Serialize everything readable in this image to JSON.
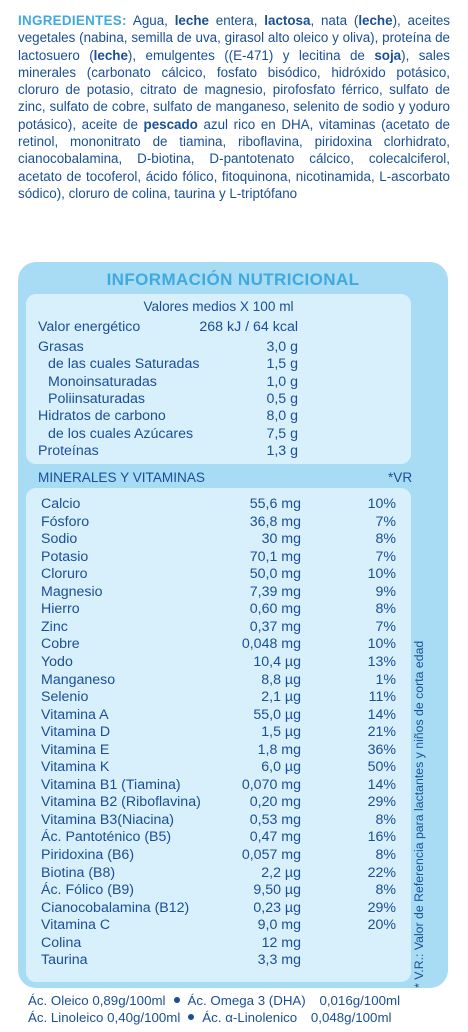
{
  "ingredients": {
    "heading": "INGREDIENTES:",
    "segments": [
      {
        "t": " Agua, ",
        "b": false
      },
      {
        "t": "leche",
        "b": true
      },
      {
        "t": " entera, ",
        "b": false
      },
      {
        "t": "lactosa",
        "b": true
      },
      {
        "t": ", nata (",
        "b": false
      },
      {
        "t": "leche",
        "b": true
      },
      {
        "t": "), aceites vegetales (nabina, semilla de uva, girasol alto oleico y oliva), proteína de lactosuero (",
        "b": false
      },
      {
        "t": "leche",
        "b": true
      },
      {
        "t": "), emulgentes ((E-471) y lecitina de ",
        "b": false
      },
      {
        "t": "soja",
        "b": true
      },
      {
        "t": "), sales minerales (carbonato cálcico, fosfato bisódico, hidróxido potásico, cloruro de potasio, citrato de magnesio, pirofosfato férrico, sulfato de zinc, sulfato de cobre, sulfato de manganeso, selenito de sodio y yoduro potásico), aceite de ",
        "b": false
      },
      {
        "t": "pescado",
        "b": true
      },
      {
        "t": " azul rico en DHA, vitaminas (acetato de retinol, mononitrato de tiamina, riboflavina, piridoxina clorhidrato, cianocobalamina, D-biotina, D-pantotenato cálcico, colecalciferol, acetato de tocoferol, ácido fólico, fitoquinona, nicotinamida, L-ascorbato sódico), cloruro de colina, taurina y L-triptófano",
        "b": false
      }
    ]
  },
  "nutrition": {
    "title": "INFORMACIÓN NUTRICIONAL",
    "average_header": "Valores medios X 100 ml",
    "energy": {
      "label": "Valor energético",
      "value": "268 kJ / 64 kcal"
    },
    "rows": [
      {
        "label": "Grasas",
        "value": "3,0 g",
        "indent": false
      },
      {
        "label": "de las cuales Saturadas",
        "value": "1,5 g",
        "indent": true
      },
      {
        "label": "Monoinsaturadas",
        "value": "1,0 g",
        "indent": true
      },
      {
        "label": "Poliinsaturadas",
        "value": "0,5 g",
        "indent": true
      },
      {
        "label": "Hidratos de carbono",
        "value": "8,0 g",
        "indent": false
      },
      {
        "label": "de los cuales Azúcares",
        "value": "7,5 g",
        "indent": true
      },
      {
        "label": "Proteínas",
        "value": "1,3 g",
        "indent": false
      }
    ]
  },
  "minerals": {
    "header": "MINERALES Y VITAMINAS",
    "vr_header": "*VR",
    "rows": [
      {
        "label": "Calcio",
        "value": "55,6 mg",
        "vr": "10%"
      },
      {
        "label": "Fósforo",
        "value": "36,8 mg",
        "vr": "7%"
      },
      {
        "label": "Sodio",
        "value": "30 mg",
        "vr": "8%"
      },
      {
        "label": "Potasio",
        "value": "70,1 mg",
        "vr": "7%"
      },
      {
        "label": "Cloruro",
        "value": "50,0 mg",
        "vr": "10%"
      },
      {
        "label": "Magnesio",
        "value": "7,39 mg",
        "vr": "9%"
      },
      {
        "label": "Hierro",
        "value": "0,60 mg",
        "vr": "8%"
      },
      {
        "label": "Zinc",
        "value": "0,37 mg",
        "vr": "7%"
      },
      {
        "label": "Cobre",
        "value": "0,048 mg",
        "vr": "10%"
      },
      {
        "label": "Yodo",
        "value": "10,4 µg",
        "vr": "13%"
      },
      {
        "label": "Manganeso",
        "value": "8,8 µg",
        "vr": "1%"
      },
      {
        "label": "Selenio",
        "value": "2,1 µg",
        "vr": "11%"
      },
      {
        "label": "Vitamina A",
        "value": "55,0 µg",
        "vr": "14%"
      },
      {
        "label": "Vitamina D",
        "value": "1,5 µg",
        "vr": "21%"
      },
      {
        "label": "Vitamina E",
        "value": "1,8 mg",
        "vr": "36%"
      },
      {
        "label": "Vitamina K",
        "value": "6,0 µg",
        "vr": "50%"
      },
      {
        "label": "Vitamina B1 (Tiamina)",
        "value": "0,070 mg",
        "vr": "14%"
      },
      {
        "label": "Vitamina B2 (Riboflavina)",
        "value": "0,20 mg",
        "vr": "29%"
      },
      {
        "label": "Vitamina B3(Niacina)",
        "value": "0,53 mg",
        "vr": "8%"
      },
      {
        "label": "Ác. Pantoténico (B5)",
        "value": "0,47 mg",
        "vr": "16%"
      },
      {
        "label": "Piridoxina (B6)",
        "value": "0,057 mg",
        "vr": "8%"
      },
      {
        "label": "Biotina (B8)",
        "value": "2,2 µg",
        "vr": "22%"
      },
      {
        "label": "Ác. Fólico (B9)",
        "value": "9,50 µg",
        "vr": "8%"
      },
      {
        "label": "Cianocobalamina (B12)",
        "value": "0,23 µg",
        "vr": "29%"
      },
      {
        "label": "Vitamina C",
        "value": "9,0 mg",
        "vr": "20%"
      },
      {
        "label": "Colina",
        "value": "12 mg",
        "vr": ""
      },
      {
        "label": "Taurina",
        "value": "3,3 mg",
        "vr": ""
      }
    ]
  },
  "vr_note": "* V.R.: Valor de Referencia para lactantes y niños de corta edad",
  "fatty_acids": [
    {
      "label": "Ác. Oleico",
      "value": "0,89g/100ml"
    },
    {
      "label": "Ác. Omega 3 (DHA)",
      "value": "0,016g/100ml"
    },
    {
      "label": "Ác. Linoleico",
      "value": "0,40g/100ml"
    },
    {
      "label": "Ác. α-Linolenico",
      "value": "0,048g/100ml"
    }
  ]
}
